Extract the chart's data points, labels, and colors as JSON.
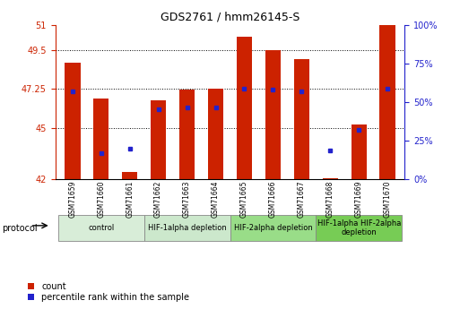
{
  "title": "GDS2761 / hmm26145-S",
  "samples": [
    "GSM71659",
    "GSM71660",
    "GSM71661",
    "GSM71662",
    "GSM71663",
    "GSM71664",
    "GSM71665",
    "GSM71666",
    "GSM71667",
    "GSM71668",
    "GSM71669",
    "GSM71670"
  ],
  "bar_tops": [
    48.8,
    46.7,
    42.4,
    46.6,
    47.2,
    47.25,
    50.3,
    49.5,
    49.0,
    42.05,
    45.2,
    51.0
  ],
  "bar_bottom": 42.0,
  "blue_dot_values": [
    47.1,
    43.5,
    43.8,
    46.1,
    46.2,
    46.2,
    47.25,
    47.2,
    47.1,
    43.7,
    44.85,
    47.25
  ],
  "ylim_left": [
    42,
    51
  ],
  "yticks_left": [
    42,
    45,
    47.25,
    49.5,
    51
  ],
  "ylim_right": [
    0,
    100
  ],
  "yticks_right": [
    0,
    25,
    50,
    75,
    100
  ],
  "ytick_labels_right": [
    "0%",
    "25%",
    "50%",
    "75%",
    "100%"
  ],
  "bar_color": "#cc2200",
  "blue_dot_color": "#2222cc",
  "protocol_groups": [
    {
      "label": "control",
      "start": 0,
      "end": 2,
      "color": "#d8edd8"
    },
    {
      "label": "HIF-1alpha depletion",
      "start": 3,
      "end": 5,
      "color": "#cce8cc"
    },
    {
      "label": "HIF-2alpha depletion",
      "start": 6,
      "end": 8,
      "color": "#99dd88"
    },
    {
      "label": "HIF-1alpha HIF-2alpha\ndepletion",
      "start": 9,
      "end": 11,
      "color": "#77cc55"
    }
  ],
  "axis_color_left": "#cc2200",
  "axis_color_right": "#2222cc",
  "background_color": "#ffffff",
  "legend_labels": [
    "count",
    "percentile rank within the sample"
  ]
}
